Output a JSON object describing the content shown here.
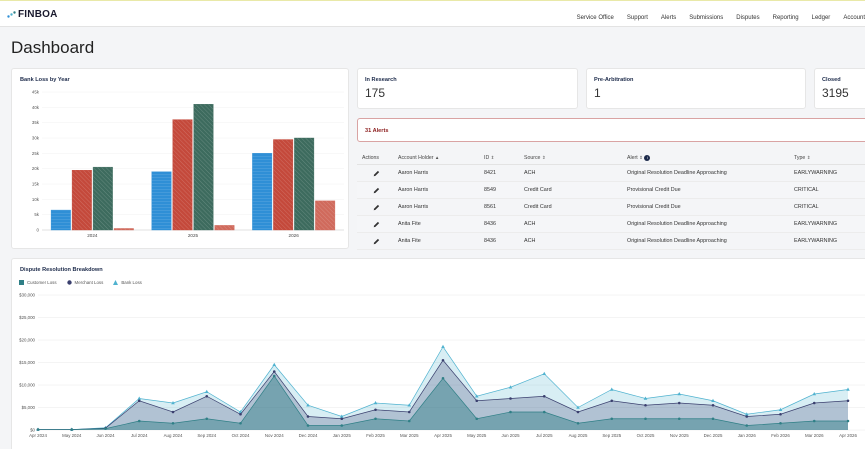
{
  "app": {
    "logo": "FINBOA"
  },
  "nav": [
    "Service Office",
    "Support",
    "Alerts",
    "Submissions",
    "Disputes",
    "Reporting",
    "Ledger",
    "Account"
  ],
  "page_title": "Dashboard",
  "stats": [
    {
      "label": "In Research",
      "value": "175"
    },
    {
      "label": "Pre-Arbitration",
      "value": "1"
    },
    {
      "label": "Closed",
      "value": "3195"
    }
  ],
  "alerts_banner": "31 Alerts",
  "table": {
    "headers": [
      "Actions",
      "Account Holder",
      "ID",
      "Source",
      "Alert",
      "Type"
    ],
    "rows": [
      {
        "holder": "Aaron Harris",
        "id": "8421",
        "source": "ACH",
        "alert": "Original Resolution Deadline Approaching",
        "type": "EARLYWARNING"
      },
      {
        "holder": "Aaron Harris",
        "id": "8549",
        "source": "Credit Card",
        "alert": "Provisional Credit Due",
        "type": "CRITICAL"
      },
      {
        "holder": "Aaron Harris",
        "id": "8561",
        "source": "Credit Card",
        "alert": "Provisional Credit Due",
        "type": "CRITICAL"
      },
      {
        "holder": "Anita Fite",
        "id": "8436",
        "source": "ACH",
        "alert": "Original Resolution Deadline Approaching",
        "type": "EARLYWARNING"
      },
      {
        "holder": "Anita Fite",
        "id": "8436",
        "source": "ACH",
        "alert": "Original Resolution Deadline Approaching",
        "type": "EARLYWARNING"
      }
    ]
  },
  "bank_loss_chart": {
    "title": "Bank Loss by Year",
    "categories": [
      "2024",
      "2025",
      "2026"
    ],
    "ylim": [
      0,
      45000
    ],
    "yticks": [
      "0",
      "5k",
      "10k",
      "15k",
      "20k",
      "25k",
      "30k",
      "35k",
      "40k",
      "45k"
    ],
    "colors": [
      "#2f8fd6",
      "#c4493b",
      "#3d6b5e",
      "#d06a5c"
    ],
    "values": [
      [
        6500,
        19500,
        20500,
        500
      ],
      [
        19000,
        36000,
        41000,
        1500
      ],
      [
        25000,
        29500,
        30000,
        9500
      ]
    ]
  },
  "dispute_chart": {
    "title": "Dispute Resolution Breakdown",
    "legend": [
      "Customer Loss",
      "Merchant Loss",
      "Bank Loss"
    ],
    "colors": [
      "#2f7f86",
      "#3a3f6e",
      "#4fb2cf"
    ],
    "ylim": [
      0,
      30000
    ],
    "yticks": [
      "$0",
      "$5,000",
      "$10,000",
      "$15,000",
      "$20,000",
      "$25,000",
      "$30,000"
    ],
    "xticks": [
      "Apr 2024",
      "May 2024",
      "Jun 2024",
      "Jul 2024",
      "Aug 2024",
      "Sep 2024",
      "Oct 2024",
      "Nov 2024",
      "Dec 2024",
      "Jan 2025",
      "Feb 2025",
      "Mar 2025",
      "Apr 2025",
      "May 2025",
      "Jun 2025",
      "Jul 2025",
      "Aug 2025",
      "Sep 2025",
      "Oct 2025",
      "Nov 2025",
      "Dec 2025",
      "Jan 2026",
      "Feb 2026",
      "Mar 2026",
      "Apr 2026"
    ],
    "customer": [
      100,
      100,
      300,
      2000,
      1500,
      2500,
      1500,
      12000,
      1000,
      1000,
      2500,
      2000,
      11500,
      2500,
      4000,
      4000,
      1500,
      2500,
      2500,
      2500,
      2500,
      1000,
      1500,
      2000,
      2000
    ],
    "merchant": [
      100,
      100,
      400,
      6500,
      4000,
      7500,
      3500,
      13000,
      3000,
      2500,
      4500,
      4000,
      15500,
      6500,
      7000,
      7500,
      4000,
      6500,
      5500,
      6000,
      5500,
      3000,
      3500,
      6000,
      6500
    ],
    "bank": [
      100,
      100,
      500,
      7000,
      6000,
      8500,
      4000,
      14500,
      5500,
      3000,
      6000,
      5500,
      18500,
      7500,
      9500,
      12500,
      5000,
      9000,
      7000,
      8000,
      6500,
      3500,
      4500,
      8000,
      9000
    ]
  }
}
